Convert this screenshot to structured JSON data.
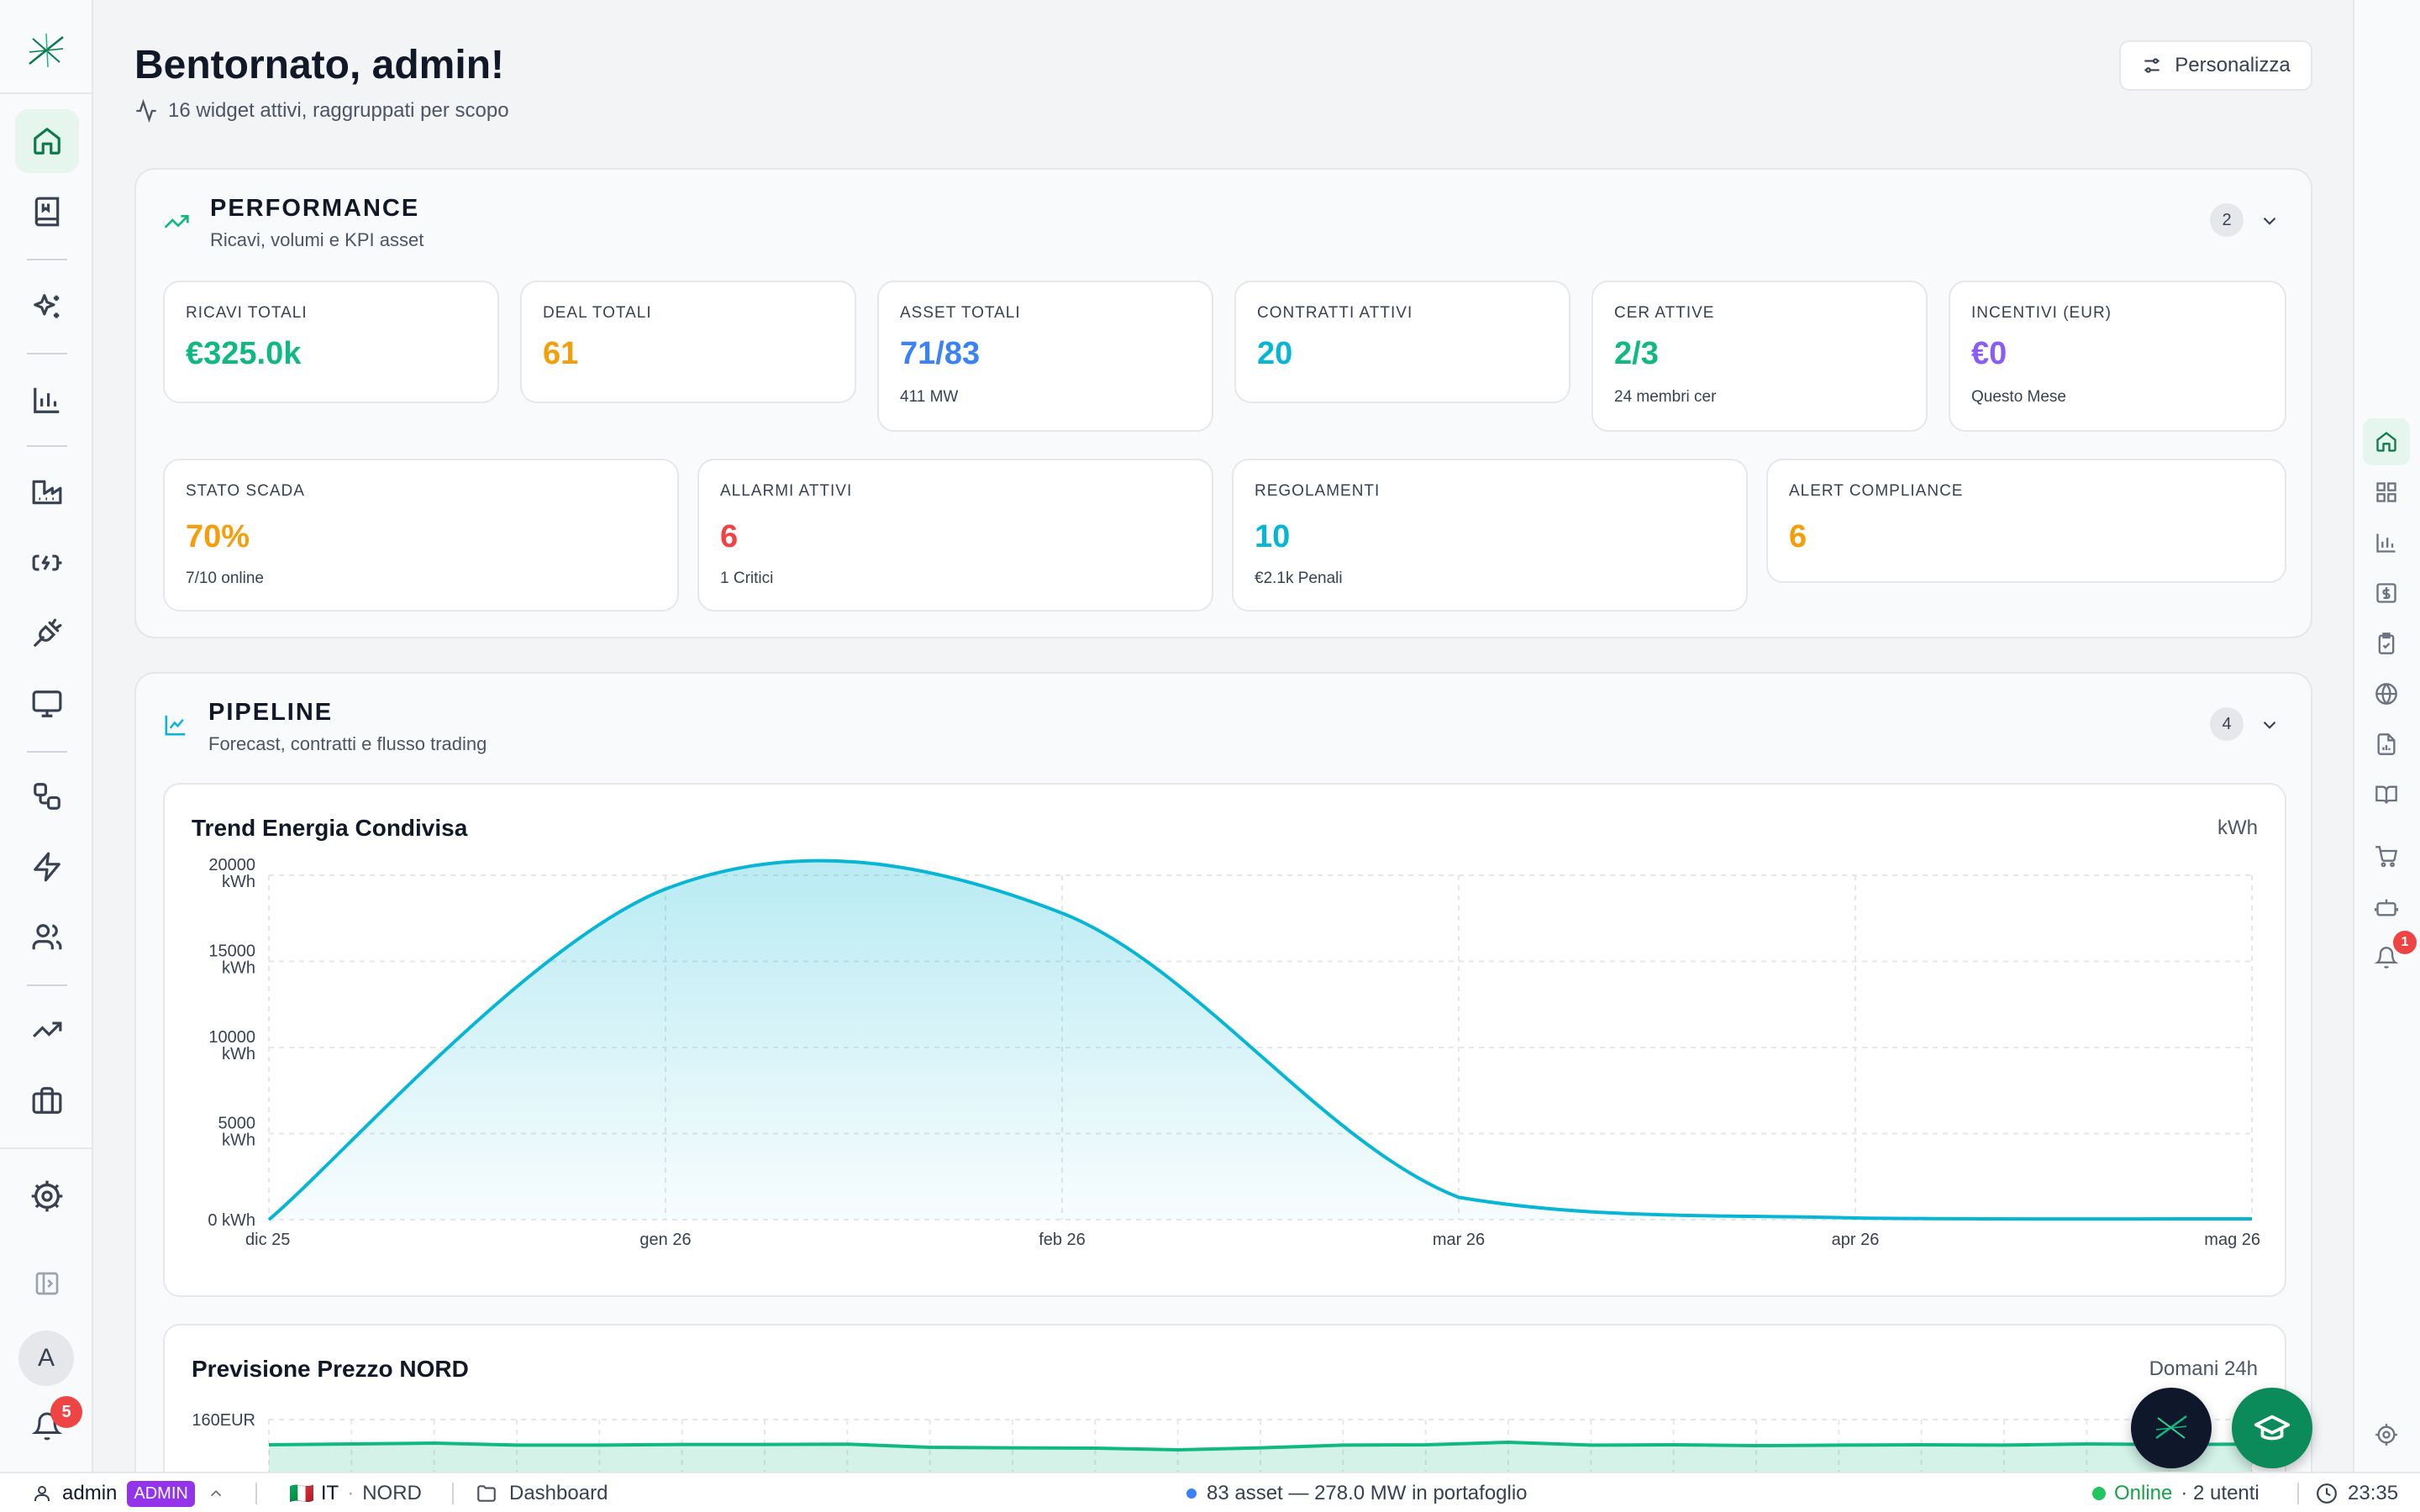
{
  "header": {
    "title": "Bentornato, admin!",
    "subtitle": "16 widget attivi, raggruppati per scopo",
    "customize_label": "Personalizza"
  },
  "sidebar_left": {
    "icons": [
      "logo-icon",
      "home-icon",
      "book-icon",
      "sparkles-icon",
      "bar-chart-icon",
      "factory-icon",
      "battery-charging-icon",
      "plug-icon",
      "monitor-icon",
      "workflow-icon",
      "zap-icon",
      "users-icon",
      "trending-up-icon",
      "briefcase-icon",
      "settings-icon",
      "panel-toggle-icon"
    ],
    "avatar_initial": "A",
    "notifications_count": "5"
  },
  "sidebar_right": {
    "icons": [
      "home-icon",
      "grid-icon",
      "bar-chart-icon",
      "dollar-icon",
      "clipboard-check-icon",
      "globe-icon",
      "file-chart-icon",
      "book-open-icon",
      "cart-icon",
      "bot-icon",
      "bell-icon",
      "settings-icon"
    ],
    "notifications_count": "1"
  },
  "sections": {
    "performance": {
      "name": "PERFORMANCE",
      "desc": "Ricavi, volumi e KPI asset",
      "count": "2",
      "kpis": [
        {
          "label": "RICAVI TOTALI",
          "value": "€325.0k",
          "sub": "",
          "color": "#10b981"
        },
        {
          "label": "DEAL TOTALI",
          "value": "61",
          "sub": "",
          "color": "#f59e0b"
        },
        {
          "label": "ASSET TOTALI",
          "value": "71/83",
          "sub": "411 MW",
          "color": "#3b82f6"
        },
        {
          "label": "CONTRATTI ATTIVI",
          "value": "20",
          "sub": "",
          "color": "#06b6d4"
        },
        {
          "label": "CER ATTIVE",
          "value": "2/3",
          "sub": "24 membri cer",
          "color": "#10b981"
        },
        {
          "label": "INCENTIVI (EUR)",
          "value": "€0",
          "sub": "Questo Mese",
          "color": "#8b5cf6"
        },
        {
          "label": "STATO SCADA",
          "value": "70%",
          "sub": "7/10 online",
          "color": "#f59e0b"
        },
        {
          "label": "ALLARMI ATTIVI",
          "value": "6",
          "sub": "1 Critici",
          "color": "#ef4444"
        },
        {
          "label": "REGOLAMENTI",
          "value": "10",
          "sub": "€2.1k Penali",
          "color": "#06b6d4"
        },
        {
          "label": "ALERT COMPLIANCE",
          "value": "6",
          "sub": "",
          "color": "#f59e0b"
        }
      ]
    },
    "pipeline": {
      "name": "PIPELINE",
      "desc": "Forecast, contratti e flusso trading",
      "count": "4"
    }
  },
  "chart_data": [
    {
      "type": "area",
      "title": "Trend Energia Condivisa",
      "unit": "kWh",
      "x": [
        "dic 25",
        "gen 26",
        "feb 26",
        "mar 26",
        "apr 26",
        "mag 26"
      ],
      "y_tick_labels": [
        "20000 kWh",
        "15000 kWh",
        "10000 kWh",
        "5000 kWh",
        "0 kWh"
      ],
      "series": [
        {
          "values": [
            0,
            19200,
            17800,
            1300,
            100,
            50
          ]
        }
      ],
      "ylim": [
        0,
        20000
      ],
      "grid": true,
      "color": "#06b6d4"
    },
    {
      "type": "area",
      "title": "Previsione Prezzo NORD",
      "unit": "Domani 24h",
      "y_tick_labels": [
        "160EUR"
      ],
      "ylim": [
        null,
        160
      ],
      "grid": true,
      "color": "#10b981"
    }
  ],
  "statusbar": {
    "user": "admin",
    "role": "ADMIN",
    "country_flag": "🇮🇹",
    "country": "IT",
    "zone": "NORD",
    "page": "Dashboard",
    "portfolio": "83 asset — 278.0 MW in portafoglio",
    "online_label": "Online",
    "users": "· 2 utenti",
    "time": "23:35"
  }
}
